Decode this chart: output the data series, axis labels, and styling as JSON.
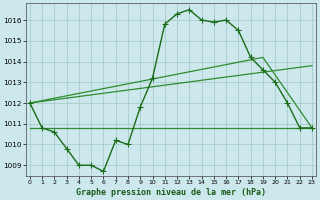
{
  "title": "Graphe pression niveau de la mer (hPa)",
  "background_color": "#cce8ec",
  "grid_color": "#aacccc",
  "x_ticks": [
    0,
    1,
    2,
    3,
    4,
    5,
    6,
    7,
    8,
    9,
    10,
    11,
    12,
    13,
    14,
    15,
    16,
    17,
    18,
    19,
    20,
    21,
    22,
    23
  ],
  "y_ticks": [
    1009,
    1010,
    1011,
    1012,
    1013,
    1014,
    1015,
    1016
  ],
  "ylim": [
    1008.5,
    1016.8
  ],
  "xlim": [
    -0.3,
    23.3
  ],
  "line1_color": "#1a6b1a",
  "line2_color": "#2e8b2e",
  "line3_color": "#2e8b2e",
  "line1": {
    "x": [
      0,
      1,
      2,
      3,
      4,
      5,
      6,
      7,
      8,
      9,
      10,
      11,
      12,
      13,
      14,
      15,
      16,
      17,
      18,
      19,
      20,
      21,
      22,
      23
    ],
    "y": [
      1012.0,
      1010.8,
      1010.6,
      1009.8,
      1009.0,
      1009.0,
      1008.7,
      1010.2,
      1010.0,
      1011.8,
      1013.2,
      1015.8,
      1016.3,
      1016.5,
      1016.0,
      1015.9,
      1016.0,
      1015.5,
      1014.2,
      1013.6,
      1013.0,
      1012.0,
      1010.8,
      1010.8
    ]
  },
  "line2": {
    "x": [
      0,
      23
    ],
    "y": [
      1012.0,
      1013.8
    ]
  },
  "line3": {
    "x": [
      0,
      23
    ],
    "y": [
      1010.8,
      1010.8
    ]
  },
  "line4": {
    "x": [
      0,
      19,
      23
    ],
    "y": [
      1012.0,
      1014.2,
      1010.8
    ]
  }
}
